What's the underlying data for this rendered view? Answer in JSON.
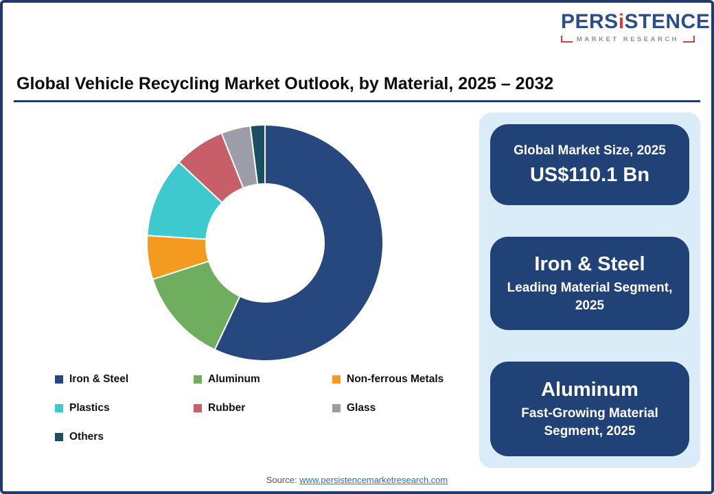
{
  "logo": {
    "brand_part1": "PERS",
    "brand_i": "i",
    "brand_part2": "STENCE",
    "subtext": "MARKET RESEARCH"
  },
  "header": {
    "title": "Global Vehicle Recycling Market Outlook, by Material, 2025 – 2032"
  },
  "chart_data": {
    "type": "pie",
    "subtype": "donut",
    "inner_radius_ratio": 0.5,
    "start_angle_deg": 0,
    "direction": "clockwise",
    "categories": [
      "Iron & Steel",
      "Aluminum",
      "Non-ferrous Metals",
      "Plastics",
      "Rubber",
      "Glass",
      "Others"
    ],
    "values": [
      57,
      13,
      6,
      11,
      7,
      4,
      2
    ],
    "colors": [
      "#27487f",
      "#6fae5e",
      "#f39a1f",
      "#3ec9ce",
      "#c75f68",
      "#9d9daa",
      "#1a4f63"
    ],
    "title": "Global Vehicle Recycling Market Outlook, by Material, 2025 – 2032",
    "legend_position": "bottom"
  },
  "panel": {
    "cards": [
      {
        "line1": "Global Market Size, 2025",
        "line2": "US$110.1 Bn"
      },
      {
        "line1": "Iron & Steel",
        "line2": "Leading Material Segment, 2025"
      },
      {
        "line1": "Aluminum",
        "line2": "Fast-Growing Material Segment, 2025"
      }
    ]
  },
  "footer": {
    "source_prefix": "Source:",
    "source_link": "www.persistencemarketresearch.com"
  }
}
